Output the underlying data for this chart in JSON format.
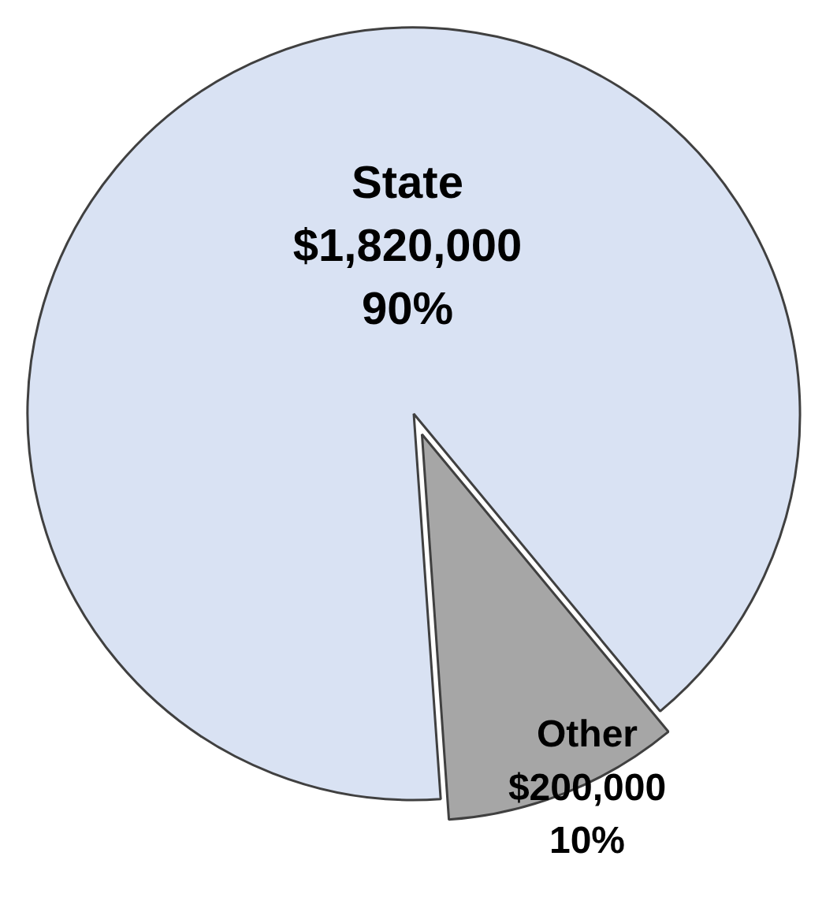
{
  "chart_data": {
    "type": "pie",
    "categories": [
      "State",
      "Other"
    ],
    "values": [
      1820000,
      200000
    ],
    "colors": [
      "#d9e2f3",
      "#a6a6a6"
    ],
    "value_labels": [
      "$1,820,000\n90%",
      "$200,000\n10%"
    ]
  }
}
